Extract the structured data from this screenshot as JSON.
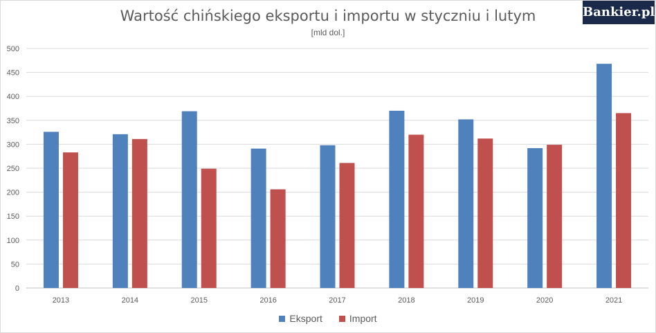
{
  "logo_text": "Bankier.pl",
  "colors": {
    "export": "#4f81bd",
    "import": "#c0504d",
    "grid": "#d9d9d9",
    "text": "#595959"
  },
  "chart_data": {
    "type": "bar",
    "title": "Wartość chińskiego eksportu i importu w styczniu i lutym",
    "subtitle": "[mld dol.]",
    "xlabel": "",
    "ylabel": "",
    "ylim": [
      0,
      500
    ],
    "yticks": [
      0,
      50,
      100,
      150,
      200,
      250,
      300,
      350,
      400,
      450,
      500
    ],
    "grid": true,
    "legend_position": "bottom",
    "categories": [
      "2013",
      "2014",
      "2015",
      "2016",
      "2017",
      "2018",
      "2019",
      "2020",
      "2021"
    ],
    "series": [
      {
        "name": "Eksport",
        "values": [
          326,
          321,
          369,
          291,
          298,
          370,
          352,
          292,
          468
        ]
      },
      {
        "name": "Import",
        "values": [
          283,
          311,
          249,
          206,
          261,
          320,
          312,
          299,
          365
        ]
      }
    ]
  }
}
